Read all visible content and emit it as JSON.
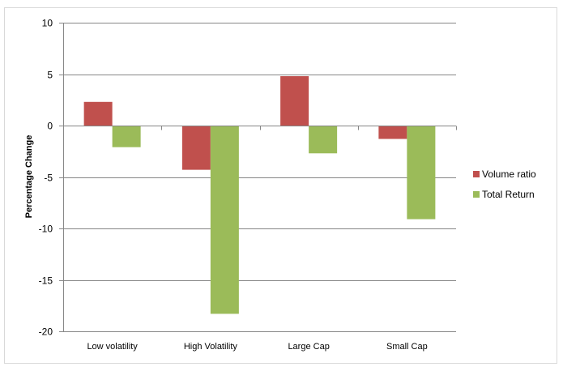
{
  "chart_data": {
    "type": "bar",
    "title": "",
    "xlabel": "",
    "ylabel": "Percentage Change",
    "ylim": [
      -20,
      10
    ],
    "yticks": [
      "10",
      "5",
      "0",
      "-5",
      "-10",
      "-15",
      "-20"
    ],
    "grid": true,
    "legend_position": "right",
    "categories": [
      "Low volatility",
      "High Volatility",
      "Large Cap",
      "Small Cap"
    ],
    "series": [
      {
        "name": "Volume ratio",
        "color": "#c0504d",
        "values": [
          2.3,
          -4.3,
          4.8,
          -1.3
        ]
      },
      {
        "name": "Total Return",
        "color": "#9bbb59",
        "values": [
          -2.1,
          -18.3,
          -2.7,
          -9.1
        ]
      }
    ]
  }
}
